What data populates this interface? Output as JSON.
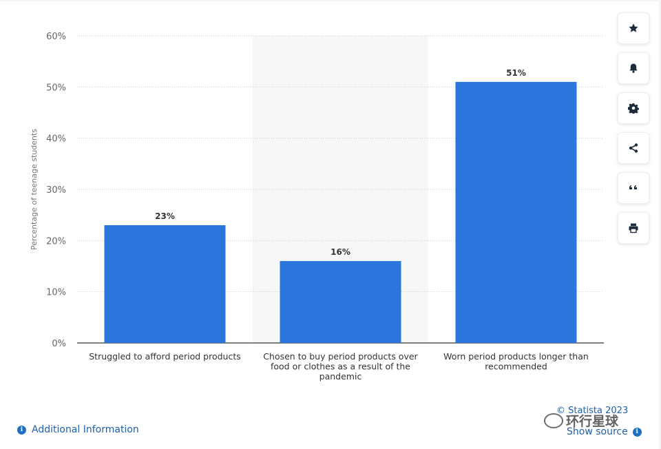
{
  "chart_data": {
    "type": "bar",
    "categories": [
      "Struggled to afford period products",
      "Chosen to buy period products over food or clothes as a result of the pandemic",
      "Worn period products longer than recommended"
    ],
    "category_lines": [
      [
        "Struggled to afford period products"
      ],
      [
        "Chosen to buy period products over",
        "food or clothes as a result of the",
        "pandemic"
      ],
      [
        "Worn period products longer than",
        "recommended"
      ]
    ],
    "values": [
      23,
      16,
      51
    ],
    "value_labels": [
      "23%",
      "16%",
      "51%"
    ],
    "ylabel": "Percentage of teenage students",
    "ylim": [
      0,
      60
    ],
    "yticks": [
      0,
      10,
      20,
      30,
      40,
      50,
      60
    ],
    "ytick_labels": [
      "0%",
      "10%",
      "20%",
      "30%",
      "40%",
      "50%",
      "60%"
    ],
    "grid": true,
    "highlighted_category_index": 1,
    "bar_color": "#2a76dd",
    "highlight_color": "#f7f7f7"
  },
  "toolbar": {
    "buttons": [
      {
        "icon": "star-icon",
        "label": "favorite"
      },
      {
        "icon": "bell-icon",
        "label": "notification"
      },
      {
        "icon": "gear-icon",
        "label": "settings"
      },
      {
        "icon": "share-icon",
        "label": "share"
      },
      {
        "icon": "quote-icon",
        "label": "cite"
      },
      {
        "icon": "print-icon",
        "label": "print"
      }
    ]
  },
  "footer": {
    "additional_info": "Additional Information",
    "credit": "© Statista 2023",
    "show_source": "Show source",
    "watermark": "环行星球"
  }
}
